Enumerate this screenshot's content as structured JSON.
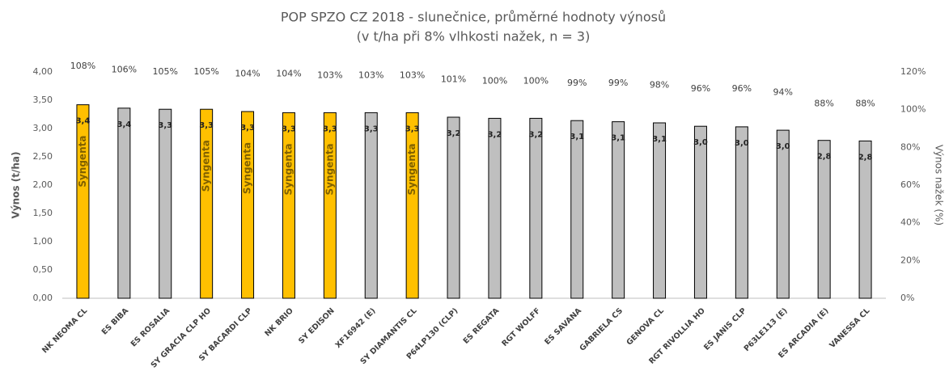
{
  "chart_data": {
    "type": "bar",
    "title": [
      "POP SPZO CZ 2018 - slunečnice, průměrné hodnoty výnosů",
      "(v t/ha při 8% vlhkosti nažek, n = 3)"
    ],
    "y_label": "Výnos  (t/ha)",
    "y2_label": "Výnos nažek (%)",
    "categories": [
      "NK NEOMA CL",
      "ES BIBA",
      "ES ROSALIA",
      "SY GRACIA CLP HO",
      "SY BACARDI CLP",
      "NK BRIO",
      "SY EDISON",
      "XF16942 (E)",
      "SY DIAMANTIS CL",
      "P64LP130 (CLP)",
      "ES REGATA",
      "RGT WOLFF",
      "ES SAVANA",
      "GABRIELA CS",
      "GENOVA CL",
      "RGT RIVOLLIA HO",
      "ES JANIS CLP",
      "P63LE113 (E)",
      "ES ARCADIA (E)",
      "VANESSA CL"
    ],
    "series": [
      {
        "name": "Výnos",
        "values": [
          3.42,
          3.36,
          3.34,
          3.34,
          3.3,
          3.28,
          3.28,
          3.28,
          3.28,
          3.2,
          3.18,
          3.18,
          3.14,
          3.12,
          3.1,
          3.04,
          3.03,
          2.97,
          2.79,
          2.78
        ],
        "value_labels": [
          "3,4",
          "3,4",
          "3,3",
          "3,3",
          "3,3",
          "3,3",
          "3,3",
          "3,3",
          "3,3",
          "3,2",
          "3,2",
          "3,2",
          "3,1",
          "3,1",
          "3,1",
          "3,0",
          "3,0",
          "3,0",
          "2,8",
          "2,8"
        ],
        "colors": [
          "#ffc000",
          "#bfbfbf",
          "#bfbfbf",
          "#ffc000",
          "#ffc000",
          "#ffc000",
          "#ffc000",
          "#bfbfbf",
          "#ffc000",
          "#bfbfbf",
          "#bfbfbf",
          "#bfbfbf",
          "#bfbfbf",
          "#bfbfbf",
          "#bfbfbf",
          "#bfbfbf",
          "#bfbfbf",
          "#bfbfbf",
          "#bfbfbf",
          "#bfbfbf"
        ],
        "bar_annotations": [
          "Syngenta",
          null,
          null,
          "Syngenta",
          "Syngenta",
          "Syngenta",
          "Syngenta",
          null,
          "Syngenta",
          null,
          null,
          null,
          null,
          null,
          null,
          null,
          null,
          null,
          null,
          null
        ]
      },
      {
        "name": "Výnos nažek",
        "axis": "y2",
        "values": [
          108,
          106,
          105,
          105,
          104,
          104,
          103,
          103,
          103,
          101,
          100,
          100,
          99,
          99,
          98,
          96,
          96,
          94,
          88,
          88
        ],
        "value_labels": [
          "108%",
          "106%",
          "105%",
          "105%",
          "104%",
          "104%",
          "103%",
          "103%",
          "103%",
          "101%",
          "100%",
          "100%",
          "99%",
          "99%",
          "98%",
          "96%",
          "96%",
          "94%",
          "88%",
          "88%"
        ]
      }
    ],
    "ylim": [
      0,
      4
    ],
    "yticks": [
      {
        "value": 0,
        "label": "0,00"
      },
      {
        "value": 0.5,
        "label": "0,50"
      },
      {
        "value": 1,
        "label": "1,00"
      },
      {
        "value": 1.5,
        "label": "1,50"
      },
      {
        "value": 2,
        "label": "2,00"
      },
      {
        "value": 2.5,
        "label": "2,50"
      },
      {
        "value": 3,
        "label": "3,00"
      },
      {
        "value": 3.5,
        "label": "3,50"
      },
      {
        "value": 4,
        "label": "4,00"
      }
    ],
    "y2lim": [
      0,
      120
    ],
    "y2ticks": [
      {
        "value": 0,
        "label": "0%"
      },
      {
        "value": 20,
        "label": "20%"
      },
      {
        "value": 40,
        "label": "40%"
      },
      {
        "value": 60,
        "label": "60%"
      },
      {
        "value": 80,
        "label": "80%"
      },
      {
        "value": 100,
        "label": "100%"
      },
      {
        "value": 120,
        "label": "120%"
      }
    ],
    "grid": false
  }
}
